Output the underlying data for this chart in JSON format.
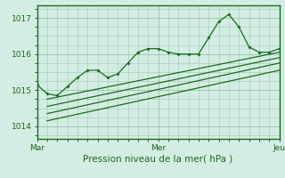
{
  "title": "",
  "xlabel": "Pression niveau de la mer( hPa )",
  "bg_color": "#d4ede4",
  "line_color": "#1a6b1a",
  "grid_color": "#9fc9b0",
  "ylim": [
    1013.65,
    1017.35
  ],
  "xlim": [
    0,
    48
  ],
  "xticks": [
    0,
    24,
    48
  ],
  "xticklabels": [
    "Mar",
    "Mer",
    "Jeu"
  ],
  "yticks": [
    1014,
    1015,
    1016,
    1017
  ],
  "main_line_x": [
    0,
    2,
    4,
    6,
    8,
    10,
    12,
    14,
    16,
    18,
    20,
    22,
    24,
    26,
    28,
    30,
    32,
    34,
    36,
    38,
    40,
    42,
    44,
    46,
    48
  ],
  "main_line_y": [
    1015.15,
    1014.9,
    1014.85,
    1015.1,
    1015.35,
    1015.55,
    1015.55,
    1015.35,
    1015.45,
    1015.75,
    1016.05,
    1016.15,
    1016.15,
    1016.05,
    1016.0,
    1016.0,
    1016.0,
    1016.45,
    1016.9,
    1017.1,
    1016.75,
    1016.2,
    1016.05,
    1016.05,
    1016.15
  ],
  "line2_x": [
    2,
    48
  ],
  "line2_y": [
    1014.75,
    1016.05
  ],
  "line3_x": [
    2,
    48
  ],
  "line3_y": [
    1014.55,
    1015.9
  ],
  "line4_x": [
    2,
    48
  ],
  "line4_y": [
    1014.35,
    1015.75
  ],
  "line5_x": [
    2,
    48
  ],
  "line5_y": [
    1014.15,
    1015.55
  ],
  "font_size_tick": 6.5,
  "font_size_xlabel": 7.5
}
